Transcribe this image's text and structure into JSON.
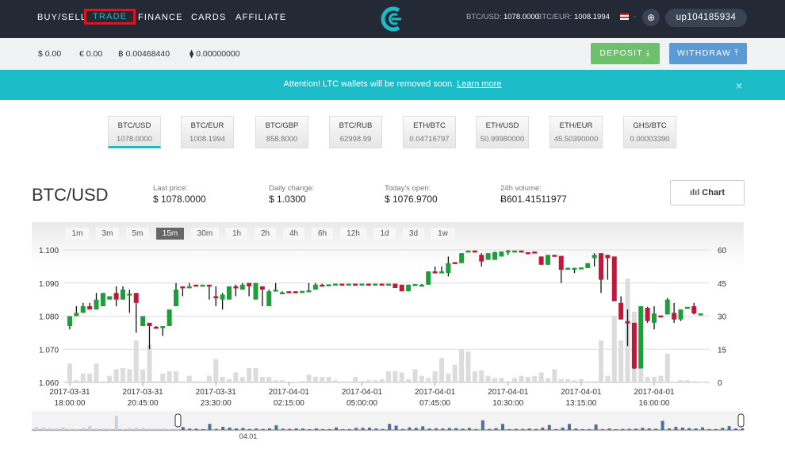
{
  "header": {
    "nav": [
      "BUY/SELL",
      "TRADE",
      "FINANCE",
      "CARDS",
      "AFFILIATE"
    ],
    "active_nav": "TRADE",
    "rates": [
      {
        "label": "BTC/USD:",
        "value": "1078.0000"
      },
      {
        "label": "BTC/EUR:",
        "value": "1008.1994"
      }
    ],
    "user": "up104185934",
    "logo": "cex-logo",
    "flag": "us-flag-icon"
  },
  "balances": [
    "$ 0.00",
    "€ 0.00",
    "฿ 0.00468440",
    "⧫ 0.00000000"
  ],
  "buttons": {
    "deposit": "DEPOSIT",
    "withdraw": "WITHDRAW",
    "chart": "Chart"
  },
  "banner": {
    "text": "Attention! LTC wallets will be removed soon. ",
    "link": "Learn more",
    "close": "×"
  },
  "pairs": [
    {
      "name": "BTC/USD",
      "price": "1078.0000"
    },
    {
      "name": "BTC/EUR",
      "price": "1008.1994"
    },
    {
      "name": "BTC/GBP",
      "price": "858.8000"
    },
    {
      "name": "BTC/RUB",
      "price": "62998.99"
    },
    {
      "name": "ETH/BTC",
      "price": "0.04716797"
    },
    {
      "name": "ETH/USD",
      "price": "50.99980000"
    },
    {
      "name": "ETH/EUR",
      "price": "45.50390000"
    },
    {
      "name": "GHS/BTC",
      "price": "0.00003390"
    }
  ],
  "selected_pair": "BTC/USD",
  "stats": [
    {
      "label": "Last price:",
      "value": "$ 1078.0000"
    },
    {
      "label": "Daily change:",
      "value": "$ 1.0300"
    },
    {
      "label": "Today's open:",
      "value": "$ 1076.9700"
    },
    {
      "label": "24h volume:",
      "value": "Ƀ601.41511977"
    }
  ],
  "timeframes": [
    "1m",
    "3m",
    "5m",
    "15m",
    "30m",
    "1h",
    "2h",
    "4h",
    "6h",
    "12h",
    "1d",
    "3d",
    "1w"
  ],
  "selected_timeframe": "15m",
  "chart_data": {
    "type": "candlestick",
    "interval": "15m",
    "y_ticks": [
      "1.060",
      "1.070",
      "1.080",
      "1.090",
      "1.100"
    ],
    "ylim": [
      1.06,
      1.1
    ],
    "volume_ticks": [
      "0",
      "15",
      "30",
      "45",
      "60"
    ],
    "volume_lim": [
      0,
      60
    ],
    "x_ticks": [
      [
        "2017-03-31",
        "18:00:00"
      ],
      [
        "2017-03-31",
        "20:45:00"
      ],
      [
        "2017-03-31",
        "23:30:00"
      ],
      [
        "2017-04-01",
        "02:15:00"
      ],
      [
        "2017-04-01",
        "05:00:00"
      ],
      [
        "2017-04-01",
        "07:45:00"
      ],
      [
        "2017-04-01",
        "10:30:00"
      ],
      [
        "2017-04-01",
        "13:15:00"
      ],
      [
        "2017-04-01",
        "16:00:00"
      ]
    ],
    "navigator_label": "04.01",
    "colors": {
      "up": "#1e9e3a",
      "down": "#c0183a",
      "volume": "#dcdcdc",
      "navigator": "#4a6fa0"
    },
    "candles_ohlcv": [
      [
        1.077,
        1.08,
        1.076,
        1.08,
        8.5
      ],
      [
        1.08,
        1.083,
        1.08,
        1.081,
        1
      ],
      [
        1.081,
        1.084,
        1.081,
        1.083,
        4
      ],
      [
        1.083,
        1.084,
        1.082,
        1.082,
        4
      ],
      [
        1.082,
        1.087,
        1.082,
        1.085,
        8.5
      ],
      [
        1.083,
        1.087,
        1.083,
        1.087,
        0.5
      ],
      [
        1.085,
        1.086,
        1.085,
        1.086,
        3
      ],
      [
        1.087,
        1.089,
        1.083,
        1.085,
        6
      ],
      [
        1.085,
        1.089,
        1.085,
        1.088,
        6.5
      ],
      [
        1.0865,
        1.088,
        1.081,
        1.0868,
        6
      ],
      [
        1.087,
        1.087,
        1.075,
        1.084,
        19
      ],
      [
        1.077,
        1.08,
        1.077,
        1.08,
        6
      ],
      [
        1.078,
        1.078,
        1.07,
        1.077,
        17
      ],
      [
        1.0768,
        1.077,
        1.0765,
        1.0765,
        0.5
      ],
      [
        1.0765,
        1.077,
        1.074,
        1.077,
        4
      ],
      [
        1.077,
        1.082,
        1.077,
        1.082,
        5
      ],
      [
        1.083,
        1.09,
        1.083,
        1.088,
        5
      ],
      [
        1.089,
        1.089,
        1.086,
        1.0885,
        0.5
      ],
      [
        1.0885,
        1.09,
        1.0885,
        1.089,
        3
      ],
      [
        1.0895,
        1.0895,
        1.089,
        1.089,
        0.5
      ],
      [
        1.089,
        1.0895,
        1.089,
        1.0895,
        0.5
      ],
      [
        1.0895,
        1.0895,
        1.085,
        1.089,
        3
      ],
      [
        1.086,
        1.089,
        1.083,
        1.0855,
        10.5
      ],
      [
        1.085,
        1.087,
        1.082,
        1.0865,
        2.5
      ],
      [
        1.085,
        1.089,
        1.085,
        1.089,
        1.5
      ],
      [
        1.089,
        1.0895,
        1.086,
        1.0885,
        4.5
      ],
      [
        1.088,
        1.09,
        1.088,
        1.0895,
        2.5
      ],
      [
        1.09,
        1.09,
        1.086,
        1.089,
        6.5
      ],
      [
        1.085,
        1.09,
        1.085,
        1.09,
        6.5
      ],
      [
        1.089,
        1.089,
        1.083,
        1.088,
        2.5
      ],
      [
        1.083,
        1.088,
        1.083,
        1.0875,
        2.5
      ],
      [
        1.0875,
        1.09,
        1.0875,
        1.088,
        1
      ],
      [
        1.087,
        1.0875,
        1.087,
        1.0872,
        1
      ],
      [
        1.0875,
        1.0875,
        1.0872,
        1.0872,
        0
      ],
      [
        1.0875,
        1.0875,
        1.0872,
        1.0872,
        0.2
      ],
      [
        1.0873,
        1.0876,
        1.0873,
        1.0876,
        0.5
      ],
      [
        1.0875,
        1.09,
        1.0875,
        1.0878,
        3.5
      ],
      [
        1.088,
        1.09,
        1.088,
        1.0895,
        2.5
      ],
      [
        1.0895,
        1.0898,
        1.089,
        1.089,
        2.5
      ],
      [
        1.0893,
        1.0896,
        1.0893,
        1.0896,
        2.5
      ],
      [
        1.0896,
        1.0898,
        1.0896,
        1.0898,
        1
      ],
      [
        1.0898,
        1.0898,
        1.0895,
        1.0895,
        0.5
      ],
      [
        1.0895,
        1.0898,
        1.0895,
        1.0898,
        0.5
      ],
      [
        1.0898,
        1.0898,
        1.0895,
        1.0895,
        2.5
      ],
      [
        1.0895,
        1.0898,
        1.0895,
        1.0898,
        0.5
      ],
      [
        1.0898,
        1.0898,
        1.0895,
        1.0895,
        1
      ],
      [
        1.0895,
        1.0898,
        1.0895,
        1.0898,
        1
      ],
      [
        1.0898,
        1.0898,
        1.0895,
        1.0895,
        1.5
      ],
      [
        1.0895,
        1.0898,
        1.0895,
        1.0898,
        5
      ],
      [
        1.0898,
        1.0898,
        1.0885,
        1.0885,
        5
      ],
      [
        1.0895,
        1.0895,
        1.0875,
        1.0875,
        4.5
      ],
      [
        1.0875,
        1.0895,
        1.0875,
        1.0895,
        1.5
      ],
      [
        1.0895,
        1.0897,
        1.0895,
        1.0897,
        6
      ],
      [
        1.0895,
        1.0897,
        1.089,
        1.0895,
        3
      ],
      [
        1.0895,
        1.0935,
        1.0895,
        1.0935,
        2
      ],
      [
        1.0935,
        1.095,
        1.0932,
        1.0932,
        5
      ],
      [
        1.0932,
        1.095,
        1.0932,
        1.0935,
        11
      ],
      [
        1.093,
        1.098,
        1.092,
        1.096,
        4
      ],
      [
        1.0963,
        1.0963,
        1.0958,
        1.0958,
        8
      ],
      [
        1.096,
        1.099,
        1.096,
        1.099,
        15
      ],
      [
        1.0995,
        1.0998,
        1.0995,
        1.0998,
        14
      ],
      [
        1.0998,
        1.0998,
        1.0993,
        1.0993,
        5
      ],
      [
        1.0985,
        1.099,
        1.095,
        1.0965,
        5.5
      ],
      [
        1.097,
        1.099,
        1.097,
        1.099,
        3
      ],
      [
        1.097,
        1.0995,
        1.097,
        1.0993,
        2
      ],
      [
        1.098,
        1.0995,
        1.098,
        1.0995,
        2
      ],
      [
        1.0995,
        1.1,
        1.0985,
        1.0998,
        0.5
      ],
      [
        1.0995,
        1.0998,
        1.0995,
        1.0998,
        2
      ],
      [
        1.0998,
        1.0998,
        1.0993,
        1.0993,
        3
      ],
      [
        1.0993,
        1.0993,
        1.0988,
        1.0988,
        2.5
      ],
      [
        1.0995,
        1.0995,
        1.099,
        1.099,
        3
      ],
      [
        1.098,
        1.098,
        1.0955,
        1.0955,
        4.5
      ],
      [
        1.0955,
        1.0985,
        1.0955,
        1.0985,
        2
      ],
      [
        1.0985,
        1.0985,
        1.0982,
        1.0982,
        6
      ],
      [
        1.0982,
        1.0982,
        1.09,
        1.094,
        1.5
      ],
      [
        1.0943,
        1.0946,
        1.094,
        1.0946,
        1.5
      ],
      [
        1.0943,
        1.0946,
        1.093,
        1.0946,
        1
      ],
      [
        1.0943,
        1.0947,
        1.0943,
        1.0947,
        1.5
      ],
      [
        1.0945,
        1.096,
        1.0945,
        1.096,
        0.5
      ],
      [
        1.0975,
        1.099,
        1.095,
        1.0985,
        0.5
      ],
      [
        1.099,
        1.099,
        1.087,
        1.091,
        19
      ],
      [
        1.0985,
        1.0985,
        1.091,
        1.0975,
        3
      ],
      [
        1.098,
        1.098,
        1.085,
        1.0845,
        30
      ],
      [
        1.084,
        1.086,
        1.079,
        1.079,
        19
      ],
      [
        1.0785,
        1.082,
        1.071,
        1.0778,
        47
      ],
      [
        1.078,
        1.078,
        1.064,
        1.0642,
        32
      ],
      [
        1.0642,
        1.083,
        1.0642,
        1.083,
        19
      ],
      [
        1.0825,
        1.0828,
        1.078,
        1.0785,
        2.5
      ],
      [
        1.078,
        1.083,
        1.076,
        1.0808,
        2.5
      ],
      [
        1.0802,
        1.0802,
        1.0798,
        1.0798,
        3
      ],
      [
        1.0805,
        1.0855,
        1.0805,
        1.085,
        13
      ],
      [
        1.081,
        1.084,
        1.078,
        1.079,
        0.3
      ],
      [
        1.079,
        1.082,
        1.0785,
        1.082,
        1
      ],
      [
        1.0825,
        1.0828,
        1.0825,
        1.0828,
        1
      ],
      [
        1.083,
        1.084,
        1.0805,
        1.0808,
        0.5
      ],
      [
        1.0805,
        1.0808,
        1.0805,
        1.0808,
        0.2
      ]
    ]
  }
}
